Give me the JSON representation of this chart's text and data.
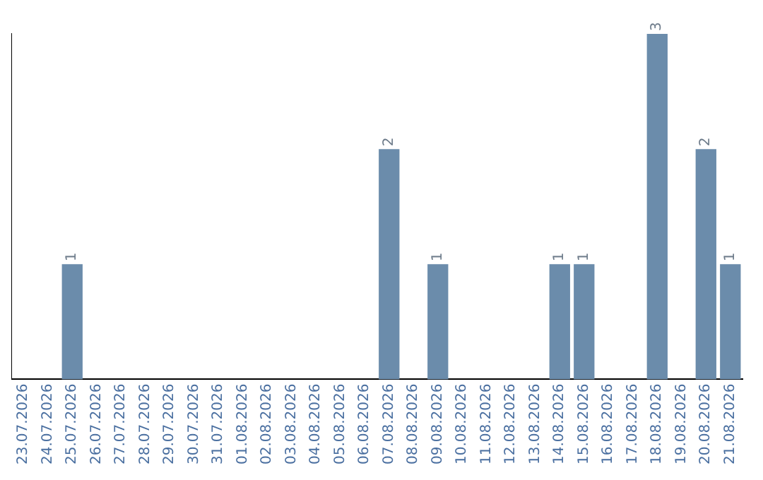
{
  "chart_data": {
    "type": "bar",
    "categories": [
      "23.07.2026",
      "24.07.2026",
      "25.07.2026",
      "26.07.2026",
      "27.07.2026",
      "28.07.2026",
      "29.07.2026",
      "30.07.2026",
      "31.07.2026",
      "01.08.2026",
      "02.08.2026",
      "03.08.2026",
      "04.08.2026",
      "05.08.2026",
      "06.08.2026",
      "07.08.2026",
      "08.08.2026",
      "09.08.2026",
      "10.08.2026",
      "11.08.2026",
      "12.08.2026",
      "13.08.2026",
      "14.08.2026",
      "15.08.2026",
      "16.08.2026",
      "17.08.2026",
      "18.08.2026",
      "19.08.2026",
      "20.08.2026",
      "21.08.2026"
    ],
    "values": [
      0,
      0,
      1,
      0,
      0,
      0,
      0,
      0,
      0,
      0,
      0,
      0,
      0,
      0,
      0,
      2,
      0,
      1,
      0,
      0,
      0,
      0,
      1,
      1,
      0,
      0,
      3,
      0,
      2,
      1
    ],
    "value_labels": [
      null,
      null,
      "1",
      null,
      null,
      null,
      null,
      null,
      null,
      null,
      null,
      null,
      null,
      null,
      null,
      "2",
      null,
      "1",
      null,
      null,
      null,
      null,
      "1",
      "1",
      null,
      null,
      "3",
      null,
      "2",
      "1"
    ],
    "color": "#6b8cab",
    "ylim": [
      0,
      3
    ],
    "grid": false,
    "legend": false,
    "tick_labels": "x"
  }
}
